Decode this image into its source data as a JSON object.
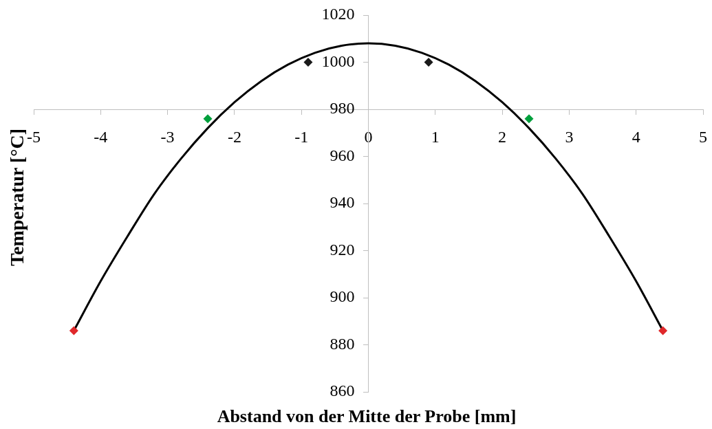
{
  "chart_data": {
    "type": "scatter",
    "xlabel": "Abstand von der Mitte der Probe [mm]",
    "ylabel": "Temperatur [°C]",
    "xlim": [
      -5,
      5
    ],
    "xticks": [
      -5,
      -4,
      -3,
      -2,
      -1,
      0,
      1,
      2,
      3,
      4,
      5
    ],
    "ylim": [
      860,
      1020
    ],
    "yticks": [
      860,
      880,
      900,
      920,
      940,
      960,
      980,
      1000,
      1020
    ],
    "series": [
      {
        "type": "line",
        "color": "#000000",
        "marker": "none",
        "x": [
          -4.4,
          -4.0,
          -3.6,
          -3.2,
          -2.8,
          -2.4,
          -2.0,
          -1.6,
          -1.2,
          -0.8,
          -0.4,
          0,
          0.4,
          0.8,
          1.2,
          1.6,
          2.0,
          2.4,
          2.8,
          3.2,
          3.6,
          4.0,
          4.4
        ],
        "values": [
          886,
          907,
          926,
          944,
          959,
          972,
          983,
          992,
          999,
          1004,
          1007,
          1008,
          1007,
          1004,
          999,
          992,
          983,
          972,
          959,
          944,
          926,
          907,
          886
        ]
      },
      {
        "type": "scatter",
        "marker": "diamond",
        "colors": [
          "#e0282b",
          "#00a03c",
          "#1a1a1a",
          "#1a1a1a",
          "#00a03c",
          "#e0282b"
        ],
        "x": [
          -4.4,
          -2.4,
          -0.9,
          0.9,
          2.4,
          4.4
        ],
        "values": [
          886,
          976,
          1000,
          1000,
          976,
          886
        ]
      }
    ]
  }
}
